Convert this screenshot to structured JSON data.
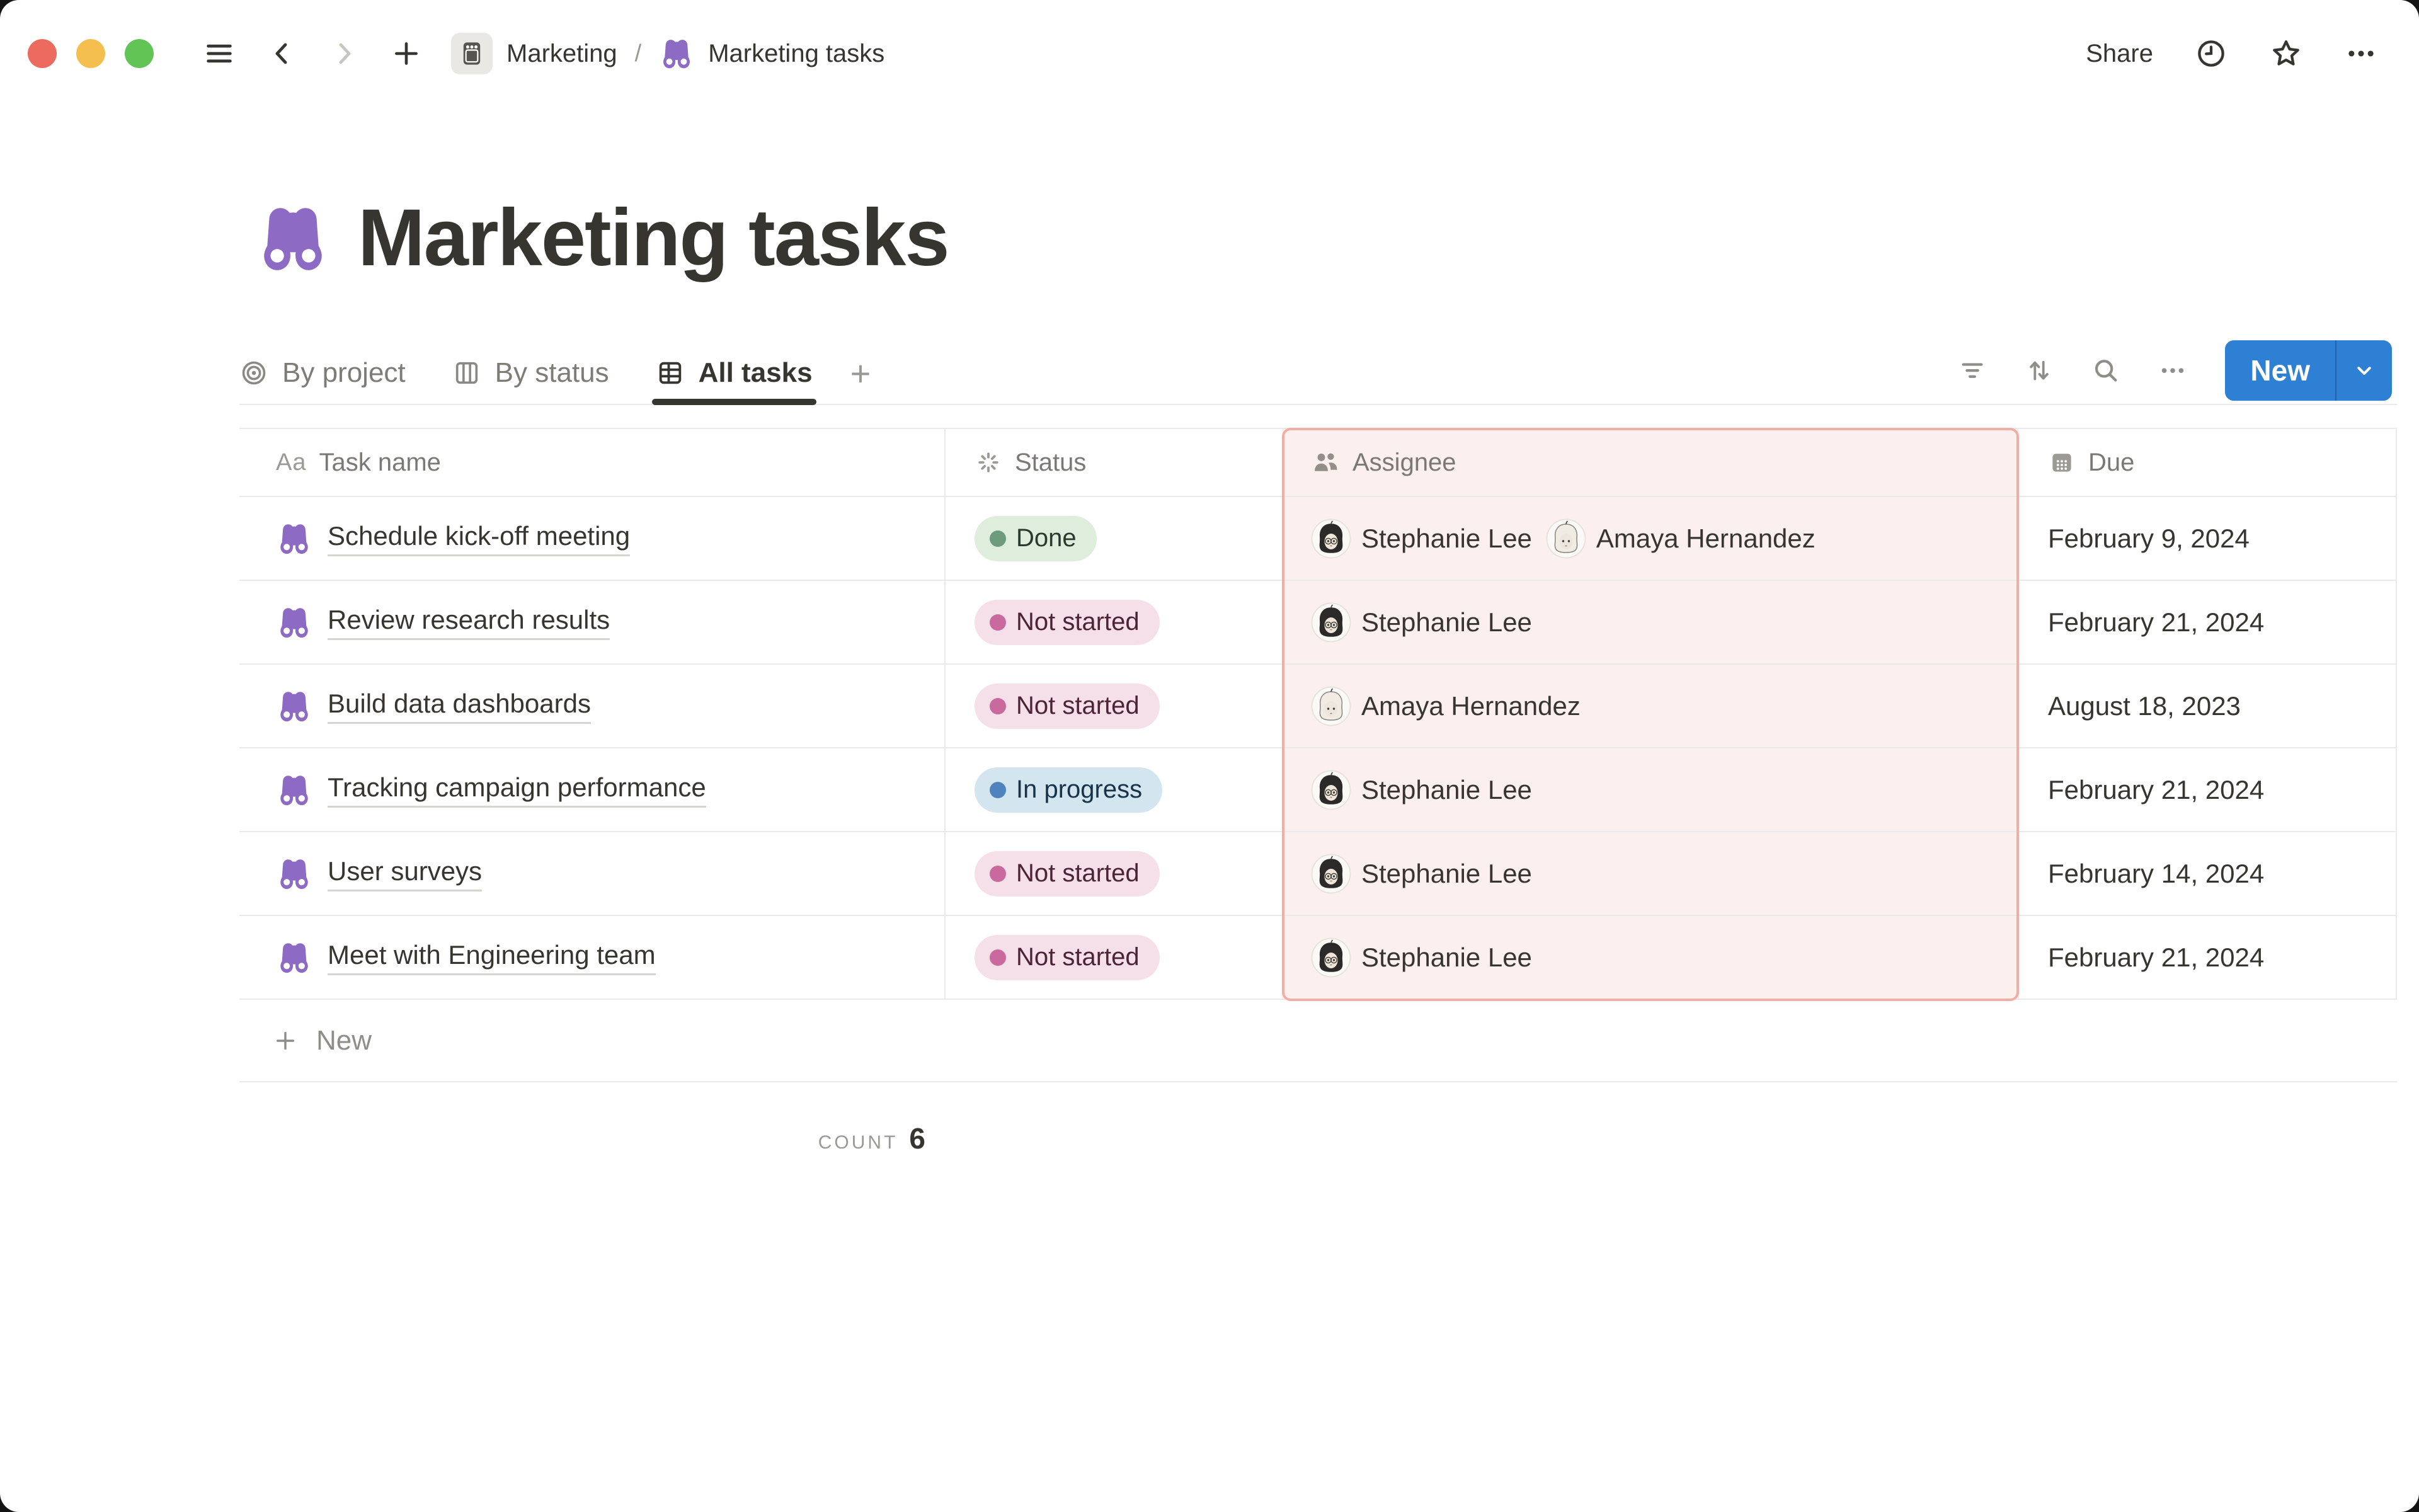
{
  "window": {
    "controls": [
      "close",
      "minimize",
      "zoom"
    ]
  },
  "topbar": {
    "breadcrumb": {
      "items": [
        {
          "label": "Marketing"
        },
        {
          "label": "Marketing tasks"
        }
      ],
      "separator": "/"
    },
    "share_label": "Share"
  },
  "page": {
    "title": "Marketing tasks"
  },
  "views": {
    "tabs": [
      {
        "label": "By project",
        "active": false
      },
      {
        "label": "By status",
        "active": false
      },
      {
        "label": "All tasks",
        "active": true
      }
    ],
    "add_view": "+"
  },
  "toolbar": {
    "new_label": "New"
  },
  "table": {
    "columns": [
      {
        "label": "Task name",
        "icon": "text-type-icon",
        "icon_glyph": "Aa"
      },
      {
        "label": "Status",
        "icon": "status-spinner-icon"
      },
      {
        "label": "Assignee",
        "icon": "people-icon",
        "highlighted": true
      },
      {
        "label": "Due",
        "icon": "calendar-icon"
      }
    ],
    "rows": [
      {
        "task": "Schedule kick-off meeting",
        "status": "Done",
        "assignees": [
          "Stephanie Lee",
          "Amaya Hernandez"
        ],
        "due": "February 9, 2024"
      },
      {
        "task": "Review research results",
        "status": "Not started",
        "assignees": [
          "Stephanie Lee"
        ],
        "due": "February 21, 2024"
      },
      {
        "task": "Build data dashboards",
        "status": "Not started",
        "assignees": [
          "Amaya Hernandez"
        ],
        "due": "August 18, 2023"
      },
      {
        "task": "Tracking campaign performance",
        "status": "In progress",
        "assignees": [
          "Stephanie Lee"
        ],
        "due": "February 21, 2024"
      },
      {
        "task": "User surveys",
        "status": "Not started",
        "assignees": [
          "Stephanie Lee"
        ],
        "due": "February 14, 2024"
      },
      {
        "task": "Meet with Engineering team",
        "status": "Not started",
        "assignees": [
          "Stephanie Lee"
        ],
        "due": "February 21, 2024"
      }
    ],
    "new_row_label": "New",
    "footer": {
      "count_label": "COUNT",
      "count_value": "6"
    }
  },
  "status_styles": {
    "Done": {
      "bg": "#DFEDDC",
      "dot": "#6C9B7D",
      "text": "#2B3A30"
    },
    "Not started": {
      "bg": "#F5E0E9",
      "dot": "#C9699E",
      "text": "#4C2337"
    },
    "In progress": {
      "bg": "#D3E5EF",
      "dot": "#4F83BD",
      "text": "#183347"
    }
  },
  "people": {
    "Stephanie Lee": {
      "hair": "#2B2A28",
      "hair_stroke": "#2B2A28",
      "skin": "#EFE5D9",
      "glasses": true
    },
    "Amaya Hernandez": {
      "hair": "#F0ECE4",
      "hair_stroke": "#8A867F",
      "skin": "#EDE6DC",
      "glasses": false
    }
  },
  "colors": {
    "accent_purple": "#8D6BC4",
    "accent_blue": "#2E80D4",
    "highlight_border": "#F0AEA5",
    "highlight_bg": "#FCF0EE",
    "text_primary": "#37352F",
    "text_gray": "#7E7C77",
    "divider": "#E9E9E7"
  }
}
